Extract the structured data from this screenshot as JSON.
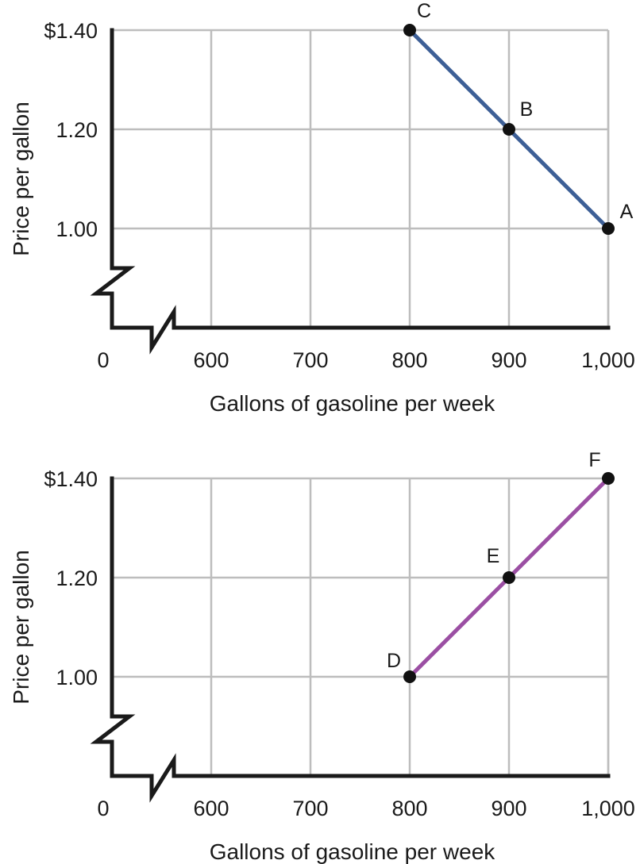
{
  "chart_data": [
    {
      "type": "line",
      "name": "top",
      "xlabel": "Gallons of gasoline per week",
      "ylabel": "Price per gallon",
      "x_ticks": [
        {
          "value": 0,
          "label": "0"
        },
        {
          "value": 600,
          "label": "600"
        },
        {
          "value": 700,
          "label": "700"
        },
        {
          "value": 800,
          "label": "800"
        },
        {
          "value": 900,
          "label": "900"
        },
        {
          "value": 1000,
          "label": "1,000"
        }
      ],
      "y_ticks": [
        {
          "value": 1.0,
          "label": "1.00"
        },
        {
          "value": 1.2,
          "label": "1.20"
        },
        {
          "value": 1.4,
          "label": "$1.40"
        }
      ],
      "xlim": [
        500,
        1000
      ],
      "ylim": [
        0.8,
        1.4
      ],
      "axis_breaks": [
        "x",
        "y"
      ],
      "grid": true,
      "line_color": "#3d5f96",
      "series": [
        {
          "name": "Line A–C",
          "points": [
            {
              "label": "C",
              "x": 800,
              "y": 1.4
            },
            {
              "label": "B",
              "x": 900,
              "y": 1.2
            },
            {
              "label": "A",
              "x": 1000,
              "y": 1.0
            }
          ]
        }
      ]
    },
    {
      "type": "line",
      "name": "bottom",
      "xlabel": "Gallons of gasoline per week",
      "ylabel": "Price per gallon",
      "x_ticks": [
        {
          "value": 0,
          "label": "0"
        },
        {
          "value": 600,
          "label": "600"
        },
        {
          "value": 700,
          "label": "700"
        },
        {
          "value": 800,
          "label": "800"
        },
        {
          "value": 900,
          "label": "900"
        },
        {
          "value": 1000,
          "label": "1,000"
        }
      ],
      "y_ticks": [
        {
          "value": 1.0,
          "label": "1.00"
        },
        {
          "value": 1.2,
          "label": "1.20"
        },
        {
          "value": 1.4,
          "label": "$1.40"
        }
      ],
      "xlim": [
        500,
        1000
      ],
      "ylim": [
        0.8,
        1.4
      ],
      "axis_breaks": [
        "x",
        "y"
      ],
      "grid": true,
      "line_color": "#9b4fa3",
      "series": [
        {
          "name": "Line D–F",
          "points": [
            {
              "label": "D",
              "x": 800,
              "y": 1.0
            },
            {
              "label": "E",
              "x": 900,
              "y": 1.2
            },
            {
              "label": "F",
              "x": 1000,
              "y": 1.4
            }
          ]
        }
      ]
    }
  ]
}
